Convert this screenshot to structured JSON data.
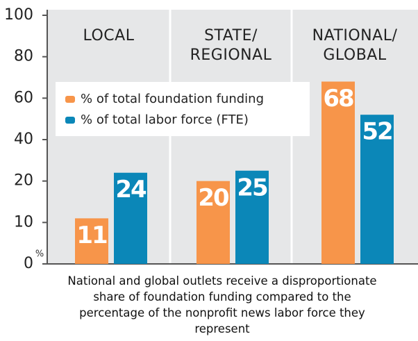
{
  "chart_data": {
    "type": "bar",
    "categories": [
      "LOCAL",
      "STATE/\nREGIONAL",
      "NATIONAL/\nGLOBAL"
    ],
    "series": [
      {
        "name": "% of total foundation funding",
        "color": "#f7954a",
        "values": [
          11,
          20,
          68
        ]
      },
      {
        "name": "% of total labor force (FTE)",
        "color": "#0b87b8",
        "values": [
          24,
          25,
          52
        ]
      }
    ],
    "ylim": [
      0,
      100
    ],
    "yticks": [
      0,
      10,
      20,
      40,
      60,
      80,
      100
    ],
    "ylabel": "%",
    "caption": "National and global outlets receive a disproportionate share of foundation funding compared to the percentage of the nonprofit news labor force they represent"
  }
}
